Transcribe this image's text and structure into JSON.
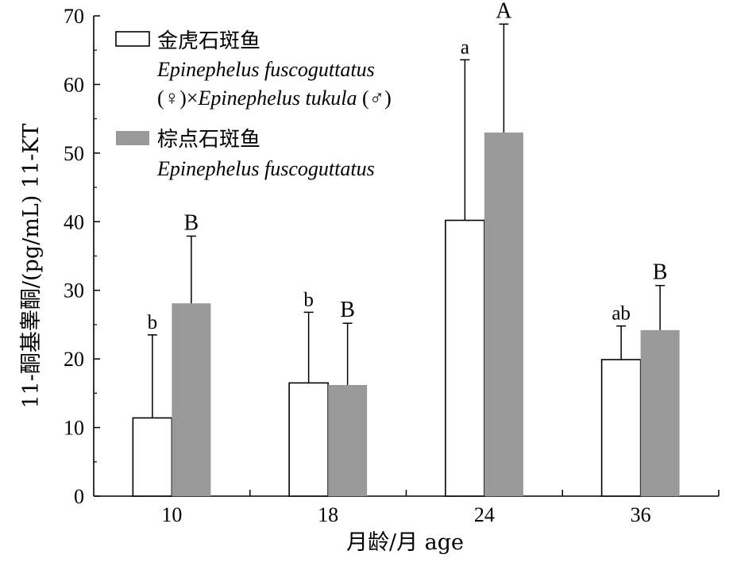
{
  "chart_data": {
    "type": "bar",
    "xlabel": "月龄/月 age",
    "ylabel": "11-酮基睾酮/(pg/mL) 11-KT",
    "ylim": [
      0,
      70
    ],
    "yticks": [
      0,
      10,
      20,
      30,
      40,
      50,
      60,
      70
    ],
    "categories": [
      "10",
      "18",
      "24",
      "36"
    ],
    "legend_position": "top-left",
    "series": [
      {
        "name": "金虎石斑鱼",
        "name_line2": "Epinephelus fuscoguttatus",
        "name_line3_a": "(♀)×",
        "name_line3_b": "Epinephelus tukula",
        "name_line3_c": " (♂)",
        "color": "#ffffff",
        "values": [
          11.4,
          16.5,
          40.2,
          19.9
        ],
        "errors": [
          12.1,
          10.3,
          23.4,
          4.9
        ],
        "letters": [
          "b",
          "b",
          "a",
          "ab"
        ]
      },
      {
        "name": "棕点石斑鱼",
        "name_line2": "Epinephelus fuscoguttatus",
        "color": "#999999",
        "values": [
          28.1,
          16.2,
          53.0,
          24.2
        ],
        "errors": [
          9.8,
          9.0,
          15.8,
          6.5
        ],
        "letters": [
          "B",
          "B",
          "A",
          "B"
        ]
      }
    ]
  }
}
